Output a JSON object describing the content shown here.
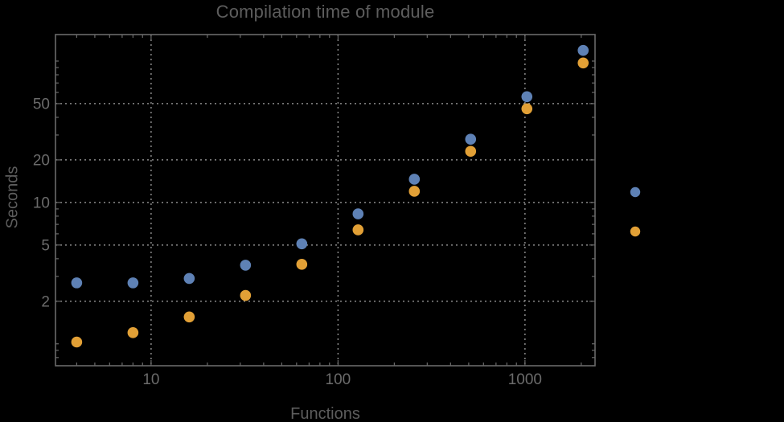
{
  "window": {
    "background_color": "#000000"
  },
  "chart_data": {
    "type": "scatter",
    "title": "Compilation time of module",
    "xlabel": "Functions",
    "ylabel": "Seconds",
    "x_scale": "log",
    "y_scale": "log",
    "grid": "dotted-at-major-ticks",
    "legend_position": "right-outside",
    "x_tick_labels": [
      "10",
      "100",
      "1000"
    ],
    "x_tick_values": [
      10,
      100,
      1000
    ],
    "y_tick_labels": [
      "2",
      "5",
      "10",
      "20",
      "50"
    ],
    "y_tick_values": [
      2,
      5,
      10,
      20,
      50
    ],
    "xlim": [
      3.08,
      2370
    ],
    "ylim": [
      0.7,
      154
    ],
    "x": [
      4,
      8,
      16,
      32,
      64,
      128,
      256,
      512,
      1024,
      2048
    ],
    "series": [
      {
        "name": "series-blue",
        "color": "#5E81B5",
        "values": [
          2.7,
          2.7,
          2.9,
          3.6,
          5.1,
          8.3,
          14.6,
          28,
          56,
          119
        ]
      },
      {
        "name": "series-orange",
        "color": "#E2A036",
        "values": [
          1.03,
          1.2,
          1.55,
          2.2,
          3.65,
          6.4,
          12,
          23,
          46,
          97
        ]
      }
    ],
    "legend": {
      "labels_visible": false,
      "markers": [
        {
          "series": "series-blue",
          "color": "#5E81B5"
        },
        {
          "series": "series-orange",
          "color": "#E2A036"
        }
      ]
    }
  },
  "styles": {
    "frame_color": "#6a6a6a",
    "grid_color": "#8a8a8a",
    "tick_color": "#6a6a6a",
    "tick_label_color": "#6b6b6b",
    "text_color": "#5d5d5d"
  }
}
